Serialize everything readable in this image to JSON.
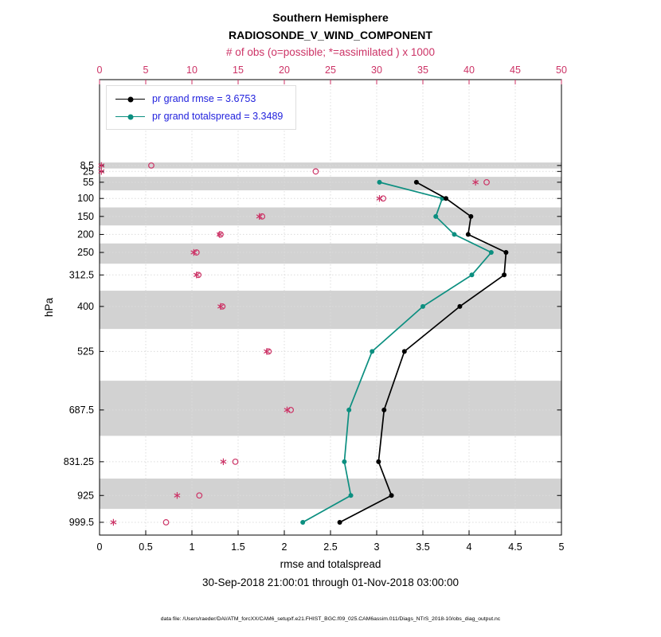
{
  "title": {
    "line1": "Southern Hemisphere",
    "line2": "RADIOSONDE_V_WIND_COMPONENT"
  },
  "top_axis": {
    "label": "# of obs (o=possible; *=assimilated ) x 1000",
    "tick_labels": [
      "0",
      "5",
      "10",
      "15",
      "20",
      "25",
      "30",
      "35",
      "40",
      "45",
      "50"
    ]
  },
  "bottom_axis": {
    "label": "rmse and totalspread",
    "tick_labels": [
      "0",
      "0.5",
      "1",
      "1.5",
      "2",
      "2.5",
      "3",
      "3.5",
      "4",
      "4.5",
      "5"
    ]
  },
  "left_axis": {
    "label": "hPa",
    "tick_labels": [
      "8.5",
      "25",
      "55",
      "100",
      "150",
      "200",
      "250",
      "312.5",
      "400",
      "525",
      "687.5",
      "831.25",
      "925",
      "999.5"
    ]
  },
  "legend": {
    "items": [
      {
        "label": "pr grand rmse = 3.6753",
        "series": "rmse"
      },
      {
        "label": "pr grand totalspread = 3.3489",
        "series": "totalspread"
      }
    ]
  },
  "footer": {
    "date_range": "30-Sep-2018 21:00:01 through 01-Nov-2018 03:00:00",
    "data_file": "data file: /Users/raeder/DAI/ATM_forcXX/CAM6_setup/f.e21.FHIST_BGC.f09_025.CAM6assim.011/Diags_NTrS_2018-10/obs_diag_output.nc"
  },
  "colors": {
    "rmse": "#000000",
    "totalspread": "#0c8f80",
    "obs": "#cc3366",
    "legend_text": "#2222dd",
    "band": "#d2d2d2",
    "grid": "#dcdcdc"
  },
  "chart_data": {
    "type": "line",
    "title": "Southern Hemisphere RADIOSONDE_V_WIND_COMPONENT",
    "ylabel": "hPa",
    "xlabel_bottom": "rmse and totalspread",
    "xlabel_top": "# of obs (o=possible; *=assimilated ) x 1000",
    "xlim_bottom": [
      0,
      5
    ],
    "xlim_top": [
      0,
      50
    ],
    "ylim_pressure": [
      -230,
      1035
    ],
    "grid": true,
    "legend_position": "top-left-inside",
    "pressure_levels": [
      8.5,
      25,
      55,
      100,
      150,
      200,
      250,
      312.5,
      400,
      525,
      687.5,
      831.25,
      925,
      999.5
    ],
    "shaded_levels": [
      8.5,
      55,
      150,
      250,
      400,
      687.5,
      925
    ],
    "rmse_overall": 3.6753,
    "totalspread_overall": 3.3489,
    "series": [
      {
        "name": "pr grand rmse",
        "overall": 3.6753,
        "axis": "bottom",
        "marker": "dot",
        "color_key": "rmse",
        "levels": [
          55,
          100,
          150,
          200,
          250,
          312.5,
          400,
          525,
          687.5,
          831.25,
          925,
          999.5
        ],
        "values": [
          3.43,
          3.75,
          4.02,
          3.99,
          4.4,
          4.38,
          3.9,
          3.3,
          3.08,
          3.02,
          3.16,
          2.6
        ]
      },
      {
        "name": "pr grand totalspread",
        "overall": 3.3489,
        "axis": "bottom",
        "marker": "dot",
        "color_key": "totalspread",
        "levels": [
          55,
          100,
          150,
          200,
          250,
          312.5,
          400,
          525,
          687.5,
          831.25,
          925,
          999.5
        ],
        "values": [
          3.03,
          3.71,
          3.64,
          3.84,
          4.24,
          4.03,
          3.5,
          2.95,
          2.7,
          2.65,
          2.72,
          2.2
        ]
      },
      {
        "name": "possible obs (o) x 1000",
        "axis": "top",
        "marker": "circle",
        "color_key": "obs",
        "levels": [
          8.5,
          25,
          55,
          100,
          150,
          200,
          250,
          312.5,
          400,
          525,
          687.5,
          831.25,
          925,
          999.5
        ],
        "values": [
          5.6,
          23.4,
          41.9,
          30.7,
          17.6,
          13.1,
          10.5,
          10.7,
          13.3,
          18.3,
          20.7,
          14.7,
          10.8,
          7.2
        ]
      },
      {
        "name": "assimilated obs (*) x 1000",
        "axis": "top",
        "marker": "asterisk",
        "color_key": "obs",
        "levels": [
          8.5,
          25,
          55,
          100,
          150,
          200,
          250,
          312.5,
          400,
          525,
          687.5,
          831.25,
          925,
          999.5
        ],
        "values": [
          0.2,
          0.2,
          40.7,
          30.3,
          17.3,
          13.0,
          10.2,
          10.5,
          13.1,
          18.1,
          20.3,
          13.4,
          8.4,
          1.5
        ]
      }
    ]
  }
}
